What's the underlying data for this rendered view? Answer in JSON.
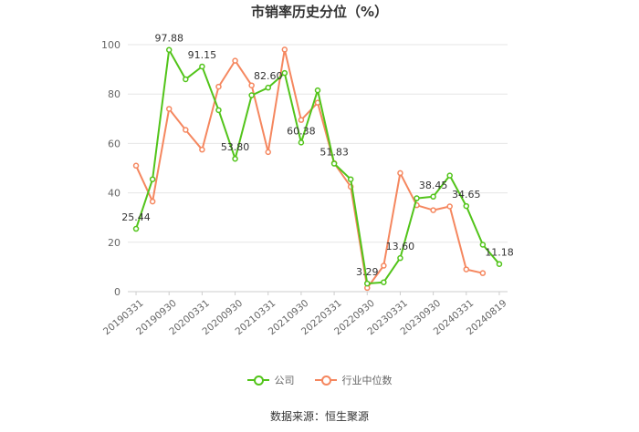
{
  "title": "市销率历史分位（%）",
  "source": "数据来源：恒生聚源",
  "legend": {
    "company": "公司",
    "industry": "行业中位数"
  },
  "colors": {
    "company": "#52c41a",
    "industry": "#f5875f",
    "grid": "#e6e6e6",
    "axis_text": "#666666"
  },
  "chart_data": {
    "type": "line",
    "title": "市销率历史分位（%）",
    "ylim": [
      0,
      100
    ],
    "yticks": [
      0,
      20,
      40,
      60,
      80,
      100
    ],
    "grid": true,
    "legend_position": "bottom",
    "x": [
      "20190331",
      "20190630",
      "20190930",
      "20191231",
      "20200331",
      "20200630",
      "20200930",
      "20201231",
      "20210331",
      "20210630",
      "20210930",
      "20211231",
      "20220331",
      "20220630",
      "20220930",
      "20221231",
      "20230331",
      "20230630",
      "20230930",
      "20231231",
      "20240331",
      "20240630",
      "20240819"
    ],
    "xtick_labels": [
      "20190331",
      "20190930",
      "20200331",
      "20200930",
      "20210331",
      "20210930",
      "20220331",
      "20220930",
      "20230331",
      "20230930",
      "20240331",
      "20240819"
    ],
    "series": [
      {
        "name": "公司",
        "values": [
          25.44,
          45.5,
          97.88,
          86.0,
          91.15,
          73.5,
          53.8,
          79.5,
          82.6,
          88.5,
          60.38,
          81.5,
          51.83,
          45.5,
          3.29,
          3.8,
          13.6,
          37.8,
          38.45,
          47.0,
          34.65,
          19.0,
          11.18
        ],
        "labels": [
          "25.44",
          null,
          "97.88",
          null,
          "91.15",
          null,
          "53.80",
          null,
          "82.60",
          null,
          "60.38",
          null,
          "51.83",
          null,
          "3.29",
          null,
          "13.60",
          null,
          "38.45",
          null,
          "34.65",
          null,
          "11.18"
        ]
      },
      {
        "name": "行业中位数",
        "values": [
          51.0,
          36.5,
          74.0,
          65.5,
          57.5,
          83.0,
          93.5,
          83.5,
          56.5,
          98.0,
          69.5,
          76.5,
          52.0,
          42.5,
          1.5,
          10.5,
          48.0,
          35.0,
          33.0,
          34.5,
          9.0,
          7.5,
          null
        ]
      }
    ]
  }
}
